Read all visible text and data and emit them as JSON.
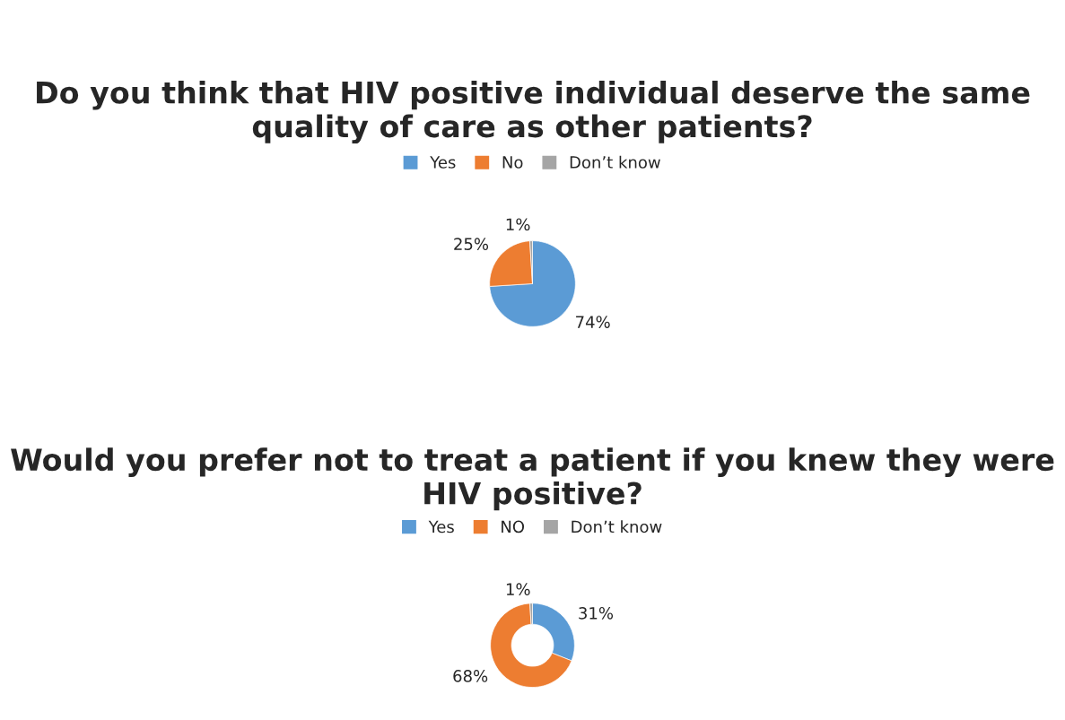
{
  "chart_data": [
    {
      "type": "pie",
      "title": "Do you think that HIV positive individual deserve the same quality of care as other patients?",
      "categories": [
        "Yes",
        "No",
        "Don’t know"
      ],
      "values": [
        74,
        25,
        1
      ],
      "colors": [
        "#5b9bd5",
        "#ed7d31",
        "#a5a5a5"
      ],
      "value_labels": [
        "74%",
        "25%",
        "1%"
      ],
      "legend": "top"
    },
    {
      "type": "donut",
      "title": "Would you prefer not to treat a patient if you knew they were HIV positive?",
      "categories": [
        "Yes",
        "NO",
        "Don’t know"
      ],
      "values": [
        31,
        68,
        1
      ],
      "colors": [
        "#5b9bd5",
        "#ed7d31",
        "#a5a5a5"
      ],
      "value_labels": [
        "31%",
        "68%",
        "1%"
      ],
      "legend": "top"
    }
  ]
}
